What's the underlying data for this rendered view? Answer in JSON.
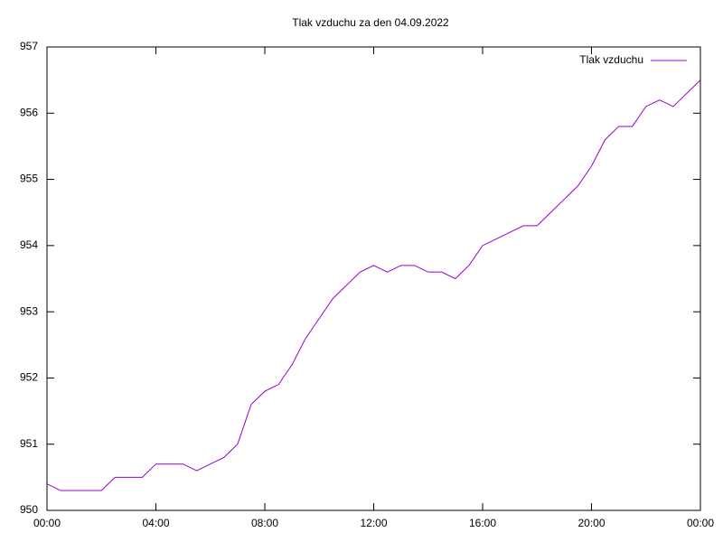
{
  "chart_data": {
    "type": "line",
    "title": "Tlak vzduchu za den 04.09.2022",
    "x": [
      0,
      0.5,
      1,
      1.5,
      2,
      2.5,
      3,
      3.5,
      4,
      4.5,
      5,
      5.5,
      6,
      6.5,
      7,
      7.5,
      8,
      8.5,
      9,
      9.5,
      10,
      10.5,
      11,
      11.5,
      12,
      12.5,
      13,
      13.5,
      14,
      14.5,
      15,
      15.5,
      16,
      16.5,
      17,
      17.5,
      18,
      18.5,
      19,
      19.5,
      20,
      20.5,
      21,
      21.5,
      22,
      22.5,
      23,
      23.5,
      24
    ],
    "series": [
      {
        "name": "Tlak vzduchu",
        "color": "#9400d3",
        "values": [
          950.4,
          950.3,
          950.3,
          950.3,
          950.3,
          950.5,
          950.5,
          950.5,
          950.7,
          950.7,
          950.7,
          950.6,
          950.7,
          950.8,
          951.0,
          951.6,
          951.8,
          951.9,
          952.2,
          952.6,
          952.9,
          953.2,
          953.4,
          953.6,
          953.7,
          953.6,
          953.7,
          953.7,
          953.6,
          953.6,
          953.5,
          953.7,
          954.0,
          954.1,
          954.2,
          954.3,
          954.3,
          954.5,
          954.7,
          954.9,
          955.2,
          955.6,
          955.8,
          955.8,
          956.1,
          956.2,
          956.1,
          956.3,
          956.5
        ]
      }
    ],
    "xlim": [
      0,
      24
    ],
    "xticks": [
      {
        "value": 0,
        "label": "00:00"
      },
      {
        "value": 4,
        "label": "04:00"
      },
      {
        "value": 8,
        "label": "08:00"
      },
      {
        "value": 12,
        "label": "12:00"
      },
      {
        "value": 16,
        "label": "16:00"
      },
      {
        "value": 20,
        "label": "20:00"
      },
      {
        "value": 24,
        "label": "00:00"
      }
    ],
    "ylim": [
      950,
      957
    ],
    "yticks": [
      950,
      951,
      952,
      953,
      954,
      955,
      956,
      957
    ],
    "legend": "top-right"
  }
}
